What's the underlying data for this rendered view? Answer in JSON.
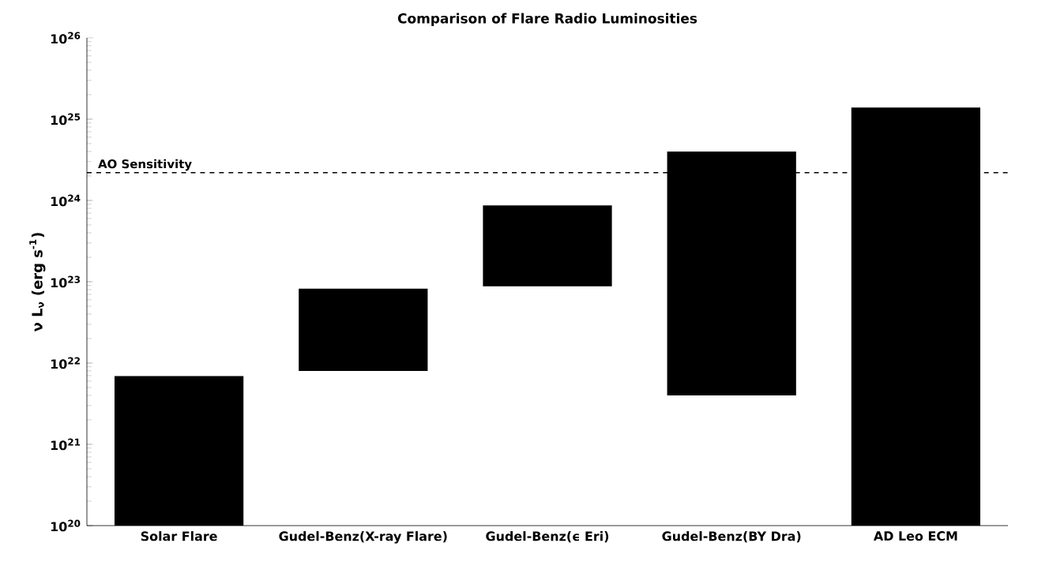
{
  "chart_data": {
    "type": "bar",
    "title": "Comparison of Flare Radio Luminosities",
    "ylabel": "ν L$_{ν}$ (erg s$^{-1}$)",
    "categories": [
      "Solar Flare",
      "Gudel-Benz(X-ray Flare)",
      "Gudel-Benz(ϵ Eri)",
      "Gudel-Benz(BY Dra)",
      "AD Leo ECM"
    ],
    "base": [
      1e+20,
      8e+21,
      8.8e+22,
      4e+21,
      1e+20
    ],
    "values": [
      6.8e+21,
      7.4e+22,
      7.8e+23,
      3.996e+24,
      1.39e+25
    ],
    "color": "#000000",
    "log": "y",
    "ylim": [
      1e+20,
      1e+26
    ],
    "yticks": [
      {
        "value": 1e+20,
        "label": "10$^{20}$"
      },
      {
        "value": 1e+21,
        "label": "10$^{21}$"
      },
      {
        "value": 1e+22,
        "label": "10$^{22}$"
      },
      {
        "value": 1e+23,
        "label": "10$^{23}$"
      },
      {
        "value": 1e+24,
        "label": "10$^{24}$"
      },
      {
        "value": 1e+25,
        "label": "10$^{25}$"
      },
      {
        "value": 1e+26,
        "label": "10$^{26}$"
      }
    ],
    "ref_lines": [
      {
        "axis": "y",
        "value": 2.2e+24,
        "label": "AO Sensitivity",
        "line_style": "dashed",
        "color": "#000000"
      }
    ],
    "grid": false
  }
}
